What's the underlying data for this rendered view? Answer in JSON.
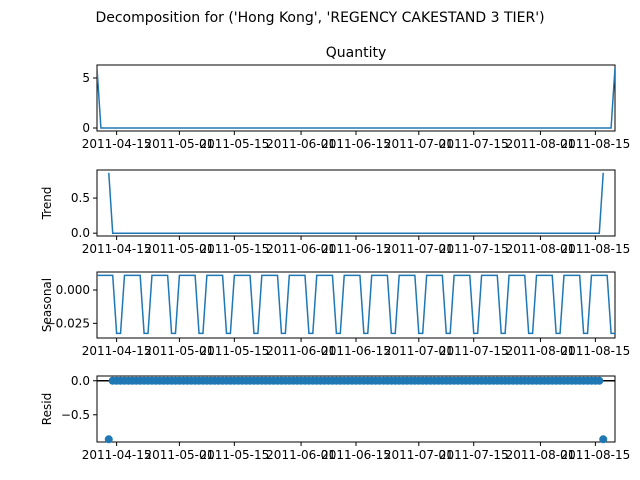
{
  "suptitle": "Decomposition for ('Hong Kong', 'REGENCY CAKESTAND 3 TIER')",
  "colors": {
    "line": "#1f77b4",
    "axis": "#000000",
    "zero_line": "#000000"
  },
  "x_tick_labels": [
    "2011-04-15",
    "2011-05-01",
    "2011-05-15",
    "2011-06-01",
    "2011-06-15",
    "2011-07-01",
    "2011-07-15",
    "2011-08-01",
    "2011-08-15"
  ],
  "chart_data": [
    {
      "type": "line",
      "title": "Quantity",
      "ylabel": "",
      "x_range": [
        "2011-04-10",
        "2011-08-20"
      ],
      "ylim": [
        -0.3,
        6.3
      ],
      "yticks": [
        0,
        5
      ],
      "ytick_labels": [
        "0",
        "5"
      ],
      "points": [
        [
          "2011-04-10",
          6
        ],
        [
          "2011-04-11",
          0
        ],
        [
          "2011-08-19",
          0
        ],
        [
          "2011-08-20",
          6
        ]
      ]
    },
    {
      "type": "line",
      "title": "",
      "ylabel": "Trend",
      "x_range": [
        "2011-04-10",
        "2011-08-20"
      ],
      "ylim": [
        -0.04,
        0.9
      ],
      "yticks": [
        0,
        0.5
      ],
      "ytick_labels": [
        "0.0",
        "0.5"
      ],
      "points": [
        [
          "2011-04-13",
          0.86
        ],
        [
          "2011-04-14",
          0
        ],
        [
          "2011-08-16",
          0
        ],
        [
          "2011-08-17",
          0.86
        ]
      ]
    },
    {
      "type": "line",
      "title": "",
      "ylabel": "Seasonal",
      "x_range": [
        "2011-04-10",
        "2011-08-20"
      ],
      "ylim": [
        -0.036,
        0.0135
      ],
      "yticks": [
        0,
        -0.025
      ],
      "ytick_labels": [
        "0.000",
        "−0.025"
      ],
      "period_days": 7,
      "weekly_pattern": [
        0.011,
        0.011,
        0.011,
        0.011,
        0.011,
        -0.0325,
        -0.0325
      ],
      "start_date": "2011-04-10"
    },
    {
      "type": "scatter",
      "title": "",
      "ylabel": "Resid",
      "x_range": [
        "2011-04-10",
        "2011-08-20"
      ],
      "ylim": [
        -0.9,
        0.07
      ],
      "yticks": [
        0,
        -0.5
      ],
      "ytick_labels": [
        "0.0",
        "−0.5"
      ],
      "baseline": 0,
      "outliers": [
        [
          "2011-04-13",
          -0.86
        ],
        [
          "2011-08-17",
          -0.86
        ]
      ],
      "residual_range": [
        "2011-04-14",
        "2011-08-16"
      ],
      "residual_value": 0
    }
  ]
}
